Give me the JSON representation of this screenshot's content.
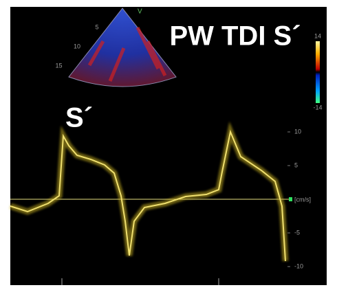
{
  "title": "PW TDI S´",
  "peak_label": "S´",
  "sector_marker": "V",
  "depth_ticks": [
    5,
    10,
    15
  ],
  "color_scale": {
    "max": 14,
    "min": -14
  },
  "velocity_axis": {
    "unit": "[cm/s]",
    "ticks": [
      10,
      5,
      -5,
      -10
    ]
  }
}
